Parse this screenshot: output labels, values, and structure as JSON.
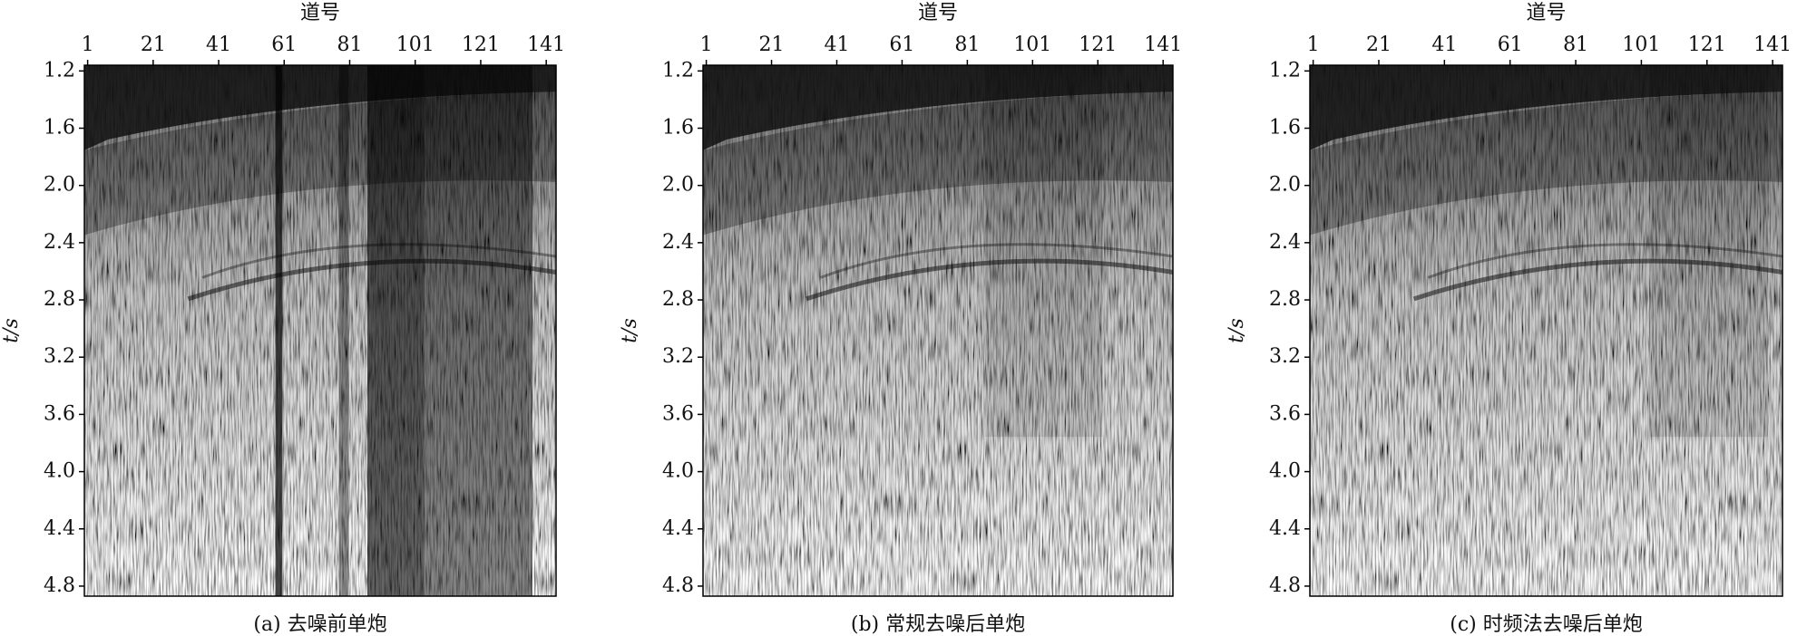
{
  "chart_data": [
    {
      "type": "seismic",
      "title": "(a) 去噪前单炮",
      "x_label": "道号",
      "y_label": "t/s",
      "xlim": [
        0,
        144
      ],
      "ylim": [
        1.16,
        4.87
      ],
      "xticks": [
        1,
        21,
        41,
        61,
        81,
        101,
        121,
        141
      ],
      "yticks": [
        1.2,
        1.6,
        {
          "value": 2,
          "label": "2.0"
        },
        2.4,
        2.8,
        3.2,
        3.6,
        {
          "value": 4,
          "label": "4.0"
        },
        4.4,
        4.8
      ]
    },
    {
      "type": "seismic",
      "title": "(b) 常规去噪后单炮",
      "x_label": "道号",
      "y_label": "t/s",
      "xlim": [
        0,
        144
      ],
      "ylim": [
        1.16,
        4.87
      ],
      "xticks": [
        1,
        21,
        41,
        61,
        81,
        101,
        121,
        141
      ],
      "yticks": [
        1.2,
        1.6,
        {
          "value": 2,
          "label": "2.0"
        },
        2.4,
        2.8,
        3.2,
        3.6,
        {
          "value": 4,
          "label": "4.0"
        },
        4.4,
        4.8
      ]
    },
    {
      "type": "seismic",
      "title": "(c) 时频法去噪后单炮",
      "x_label": "道号",
      "y_label": "t/s",
      "xlim": [
        0,
        144
      ],
      "ylim": [
        1.16,
        4.87
      ],
      "xticks": [
        1,
        21,
        41,
        61,
        81,
        101,
        121,
        141
      ],
      "yticks": [
        1.2,
        1.6,
        {
          "value": 2,
          "label": "2.0"
        },
        2.4,
        2.8,
        3.2,
        3.6,
        {
          "value": 4,
          "label": "4.0"
        },
        4.4,
        4.8
      ]
    }
  ]
}
